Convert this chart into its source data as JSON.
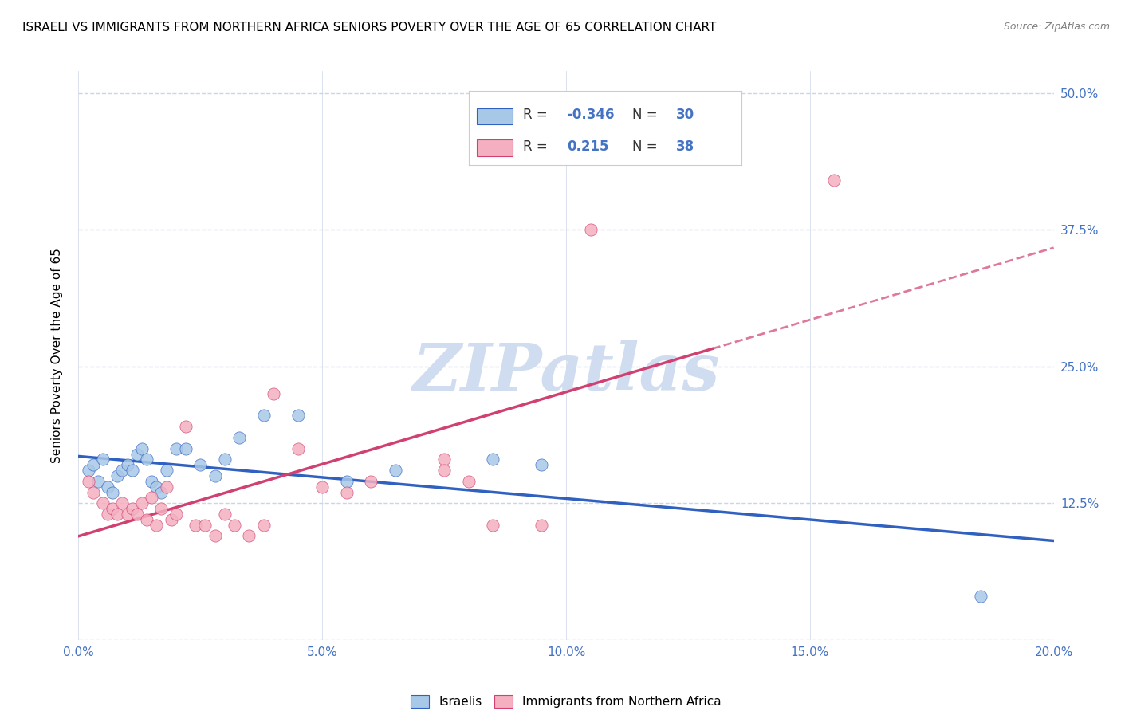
{
  "title": "ISRAELI VS IMMIGRANTS FROM NORTHERN AFRICA SENIORS POVERTY OVER THE AGE OF 65 CORRELATION CHART",
  "source": "Source: ZipAtlas.com",
  "ylabel": "Seniors Poverty Over the Age of 65",
  "xlim": [
    0.0,
    20.0
  ],
  "ylim": [
    0.0,
    52.0
  ],
  "israeli_color": "#a8c8e8",
  "immigrant_color": "#f4b0c0",
  "trend_israeli_color": "#3060c0",
  "trend_immigrant_color": "#d04070",
  "watermark": "ZIPatlas",
  "watermark_color": "#d0ddf0",
  "israelis_x": [
    0.2,
    0.3,
    0.4,
    0.5,
    0.6,
    0.7,
    0.8,
    0.9,
    1.0,
    1.1,
    1.2,
    1.3,
    1.4,
    1.5,
    1.6,
    1.7,
    1.8,
    2.0,
    2.2,
    2.5,
    2.8,
    3.0,
    3.3,
    3.8,
    4.5,
    5.5,
    6.5,
    8.5,
    9.5,
    18.5
  ],
  "israelis_y": [
    15.5,
    16.0,
    14.5,
    16.5,
    14.0,
    13.5,
    15.0,
    15.5,
    16.0,
    15.5,
    17.0,
    17.5,
    16.5,
    14.5,
    14.0,
    13.5,
    15.5,
    17.5,
    17.5,
    16.0,
    15.0,
    16.5,
    18.5,
    20.5,
    20.5,
    14.5,
    15.5,
    16.5,
    16.0,
    4.0
  ],
  "immigrants_x": [
    0.2,
    0.3,
    0.5,
    0.6,
    0.7,
    0.8,
    0.9,
    1.0,
    1.1,
    1.2,
    1.3,
    1.4,
    1.5,
    1.6,
    1.7,
    1.8,
    1.9,
    2.0,
    2.2,
    2.4,
    2.6,
    2.8,
    3.0,
    3.2,
    3.5,
    3.8,
    4.0,
    4.5,
    5.0,
    5.5,
    6.0,
    7.5,
    7.5,
    8.0,
    8.5,
    9.5,
    10.5,
    15.5
  ],
  "immigrants_y": [
    14.5,
    13.5,
    12.5,
    11.5,
    12.0,
    11.5,
    12.5,
    11.5,
    12.0,
    11.5,
    12.5,
    11.0,
    13.0,
    10.5,
    12.0,
    14.0,
    11.0,
    11.5,
    19.5,
    10.5,
    10.5,
    9.5,
    11.5,
    10.5,
    9.5,
    10.5,
    22.5,
    17.5,
    14.0,
    13.5,
    14.5,
    16.5,
    15.5,
    14.5,
    10.5,
    10.5,
    37.5,
    42.0
  ],
  "background_color": "#ffffff",
  "grid_color": "#ccd5e8",
  "title_fontsize": 11,
  "axis_color": "#4472c4",
  "trend_isr_x0": 0.0,
  "trend_isr_x1": 20.0,
  "trend_imm_solid_x1": 13.0,
  "trend_imm_dashed_x1": 20.0
}
